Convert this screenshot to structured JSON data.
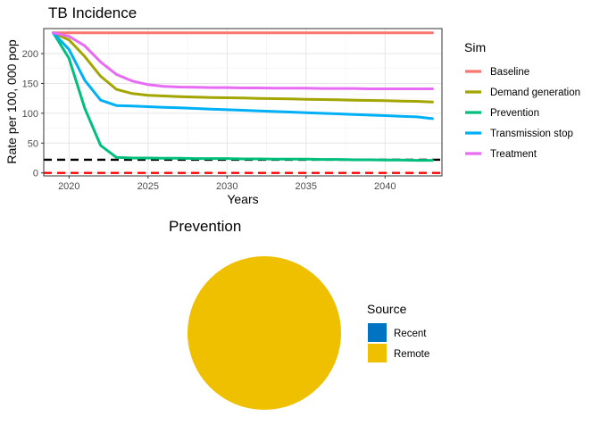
{
  "chart_data": [
    {
      "type": "line",
      "title": "TB Incidence",
      "xlabel": "Years",
      "ylabel": "Rate per 100, 000 pop",
      "xlim": [
        2018.4,
        2043.6
      ],
      "ylim": [
        -5,
        242
      ],
      "x_ticks": [
        2020,
        2025,
        2030,
        2035,
        2040
      ],
      "y_ticks": [
        0,
        50,
        100,
        150,
        200
      ],
      "grid": true,
      "legend": {
        "title": "Sim",
        "placement": "right"
      },
      "x": [
        2019,
        2020,
        2021,
        2022,
        2023,
        2024,
        2025,
        2026,
        2027,
        2028,
        2029,
        2030,
        2031,
        2032,
        2033,
        2034,
        2035,
        2036,
        2037,
        2038,
        2039,
        2040,
        2041,
        2042,
        2043
      ],
      "series": [
        {
          "name": "Baseline",
          "color": "#F8766D",
          "values": [
            235,
            235,
            235,
            235,
            235,
            235,
            235,
            235,
            235,
            235,
            235,
            235,
            235,
            235,
            235,
            235,
            235,
            235,
            235,
            235,
            235,
            235,
            235,
            235,
            235
          ]
        },
        {
          "name": "Demand generation",
          "color": "#A3A500",
          "values": [
            235,
            223,
            195,
            162,
            140,
            133,
            130,
            129,
            128,
            127,
            126.5,
            126,
            125.5,
            125,
            124.5,
            124,
            123.5,
            123,
            122.5,
            122,
            121.5,
            121,
            120.5,
            120,
            119
          ]
        },
        {
          "name": "Prevention",
          "color": "#00BF7D",
          "values": [
            235,
            192,
            108,
            46,
            26,
            25,
            25,
            24.5,
            24.5,
            24,
            24,
            24,
            23.5,
            23.5,
            23,
            23,
            23,
            22.5,
            22.5,
            22,
            22,
            21.5,
            21.5,
            21,
            21
          ]
        },
        {
          "name": "Transmission stop",
          "color": "#00B0F6",
          "values": [
            235,
            207,
            155,
            122,
            113,
            112,
            111,
            110,
            109,
            108,
            107,
            106,
            105,
            104,
            103,
            102,
            101,
            100,
            99,
            98,
            97,
            96,
            95,
            94,
            91
          ]
        },
        {
          "name": "Treatment",
          "color": "#E76BF3",
          "values": [
            235,
            229,
            213,
            186,
            165,
            154,
            148,
            145,
            144,
            143.5,
            143,
            143,
            142.5,
            142.5,
            142,
            142,
            142,
            141.5,
            141.5,
            141.5,
            141,
            141,
            141,
            141,
            141
          ]
        }
      ],
      "reference_lines": [
        {
          "y": 22,
          "color": "#000000",
          "style": "dashed"
        },
        {
          "y": 0,
          "color": "#FF0000",
          "style": "dashed"
        }
      ]
    },
    {
      "type": "pie",
      "title": "Prevention",
      "legend": {
        "title": "Source",
        "placement": "right"
      },
      "slices": [
        {
          "label": "Recent",
          "value": 0,
          "color": "#0073C2"
        },
        {
          "label": "Remote",
          "value": 100,
          "color": "#EFC000"
        }
      ]
    }
  ]
}
